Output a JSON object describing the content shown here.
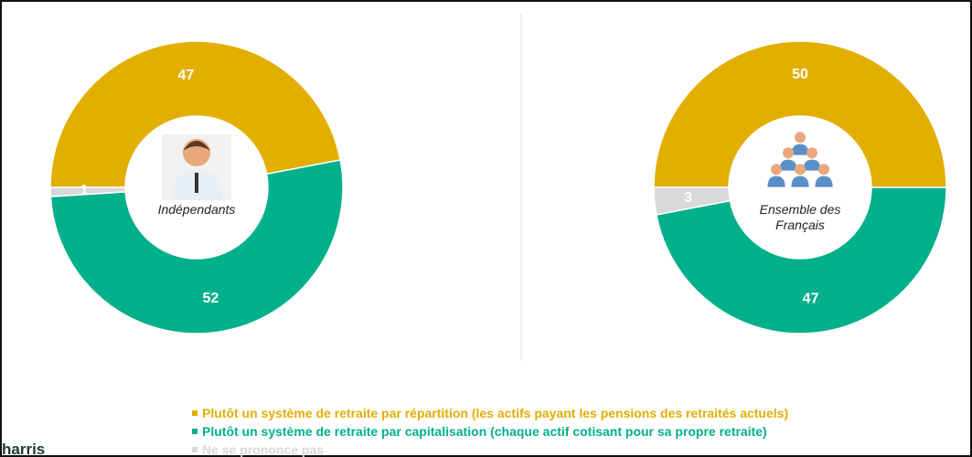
{
  "chart_data": [
    {
      "type": "donut",
      "label": "Indépendants",
      "values": [
        47,
        52,
        1
      ]
    },
    {
      "type": "donut",
      "label": "Ensemble des Français",
      "values": [
        50,
        47,
        3
      ]
    }
  ],
  "legend": {
    "items": [
      "Plutôt un système de retraite par répartition (les actifs payant les pensions des retraités actuels)",
      "Plutôt un système de retraite par capitalisation (chaque actif cotisant pour sa propre retraite)",
      "Ne se prononce pas"
    ],
    "colors": [
      "#e2ae00",
      "#00b08a",
      "#d9d9d9"
    ]
  },
  "logo": "harris"
}
